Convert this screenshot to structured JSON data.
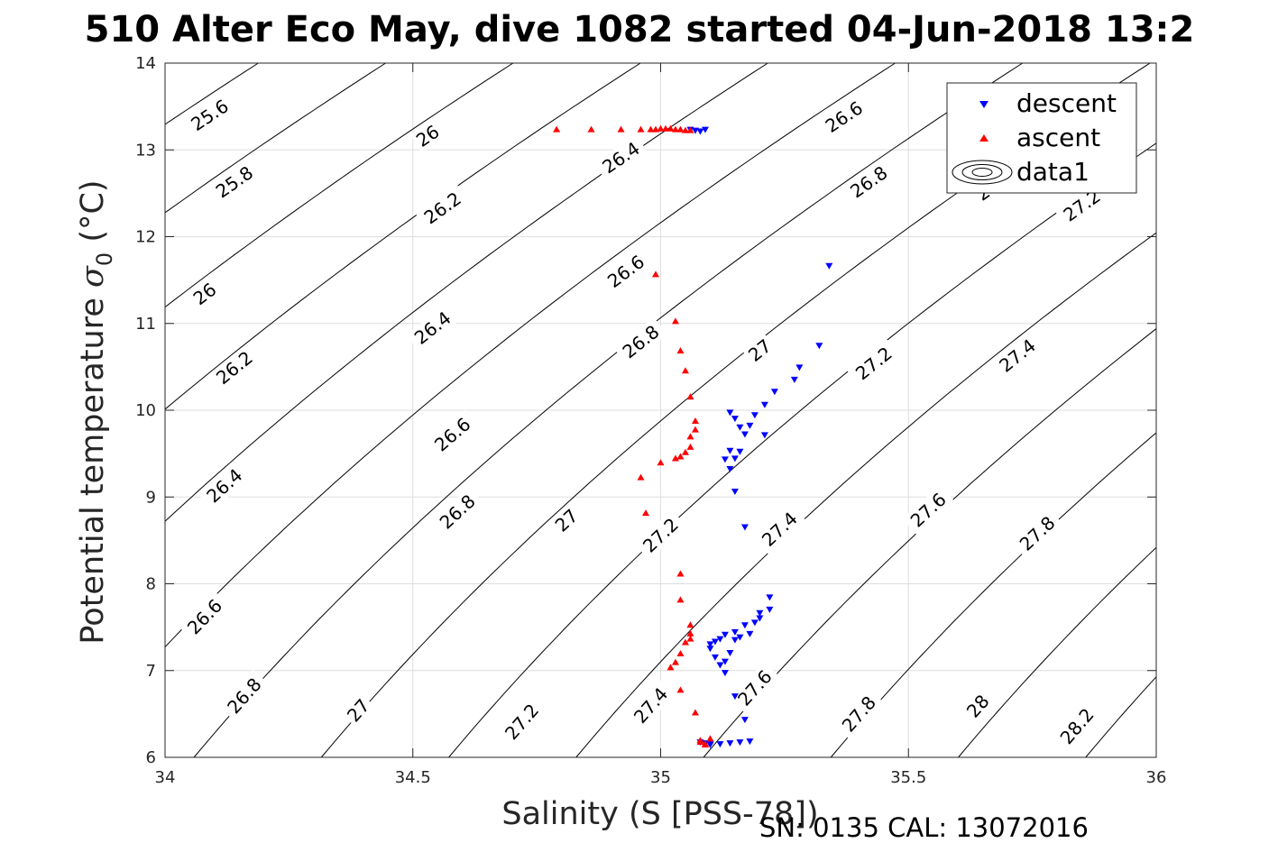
{
  "chart_data": {
    "type": "scatter",
    "title": "510 Alter Eco May, dive 1082 started 04-Jun-2018 13:2",
    "xlabel": "Salinity (S [PSS-78])",
    "ylabel_text": "Potential temperature ",
    "ylabel_symbol": "σ",
    "ylabel_sub": "0",
    "ylabel_unit": " (°C)",
    "footer": "SN: 0135  CAL: 13072016",
    "xlim": [
      34,
      36
    ],
    "ylim": [
      6,
      14
    ],
    "xticks": [
      "34",
      "34.5",
      "35",
      "35.5",
      "36"
    ],
    "yticks": [
      "6",
      "7",
      "8",
      "9",
      "10",
      "11",
      "12",
      "13",
      "14"
    ],
    "grid": true,
    "legend_position": "top-right",
    "legend": [
      "descent",
      "ascent",
      "data1"
    ],
    "colors": {
      "descent": "#0000ff",
      "ascent": "#ff0000",
      "contour": "#000000"
    },
    "contour_levels": [
      25.6,
      25.8,
      26,
      26.2,
      26.4,
      26.6,
      26.8,
      27,
      27.2,
      27.4,
      27.6,
      27.8,
      28,
      28.2
    ],
    "contour_labels": [
      {
        "text": "25.6",
        "s": 34.09,
        "t": 13.4
      },
      {
        "text": "25.8",
        "s": 34.14,
        "t": 12.63
      },
      {
        "text": "26",
        "s": 34.08,
        "t": 11.34
      },
      {
        "text": "26.2",
        "s": 34.14,
        "t": 10.49
      },
      {
        "text": "26.4",
        "s": 34.12,
        "t": 9.13
      },
      {
        "text": "26.6",
        "s": 34.08,
        "t": 7.62
      },
      {
        "text": "26.8",
        "s": 34.16,
        "t": 6.71
      },
      {
        "text": "27",
        "s": 34.39,
        "t": 6.54
      },
      {
        "text": "27.2",
        "s": 34.72,
        "t": 6.41
      },
      {
        "text": "27.4",
        "s": 34.98,
        "t": 6.6
      },
      {
        "text": "27.6",
        "s": 35.19,
        "t": 6.8
      },
      {
        "text": "27.8",
        "s": 35.4,
        "t": 6.5
      },
      {
        "text": "28",
        "s": 35.64,
        "t": 6.59
      },
      {
        "text": "28.2",
        "s": 35.84,
        "t": 6.36
      },
      {
        "text": "26",
        "s": 34.53,
        "t": 13.16
      },
      {
        "text": "26.2",
        "s": 34.56,
        "t": 12.33
      },
      {
        "text": "26.4",
        "s": 34.54,
        "t": 10.95
      },
      {
        "text": "26.6",
        "s": 34.58,
        "t": 9.72
      },
      {
        "text": "26.8",
        "s": 34.59,
        "t": 8.83
      },
      {
        "text": "27",
        "s": 34.81,
        "t": 8.73
      },
      {
        "text": "27.2",
        "s": 35.0,
        "t": 8.56
      },
      {
        "text": "27.4",
        "s": 35.24,
        "t": 8.63
      },
      {
        "text": "27.6",
        "s": 35.54,
        "t": 8.85
      },
      {
        "text": "27.8",
        "s": 35.76,
        "t": 8.58
      },
      {
        "text": "26.4",
        "s": 34.92,
        "t": 12.91
      },
      {
        "text": "26.6",
        "s": 34.93,
        "t": 11.6
      },
      {
        "text": "26.8",
        "s": 34.96,
        "t": 10.79
      },
      {
        "text": "27",
        "s": 35.2,
        "t": 10.69
      },
      {
        "text": "27.2",
        "s": 35.43,
        "t": 10.54
      },
      {
        "text": "27.4",
        "s": 35.72,
        "t": 10.63
      },
      {
        "text": "26.6",
        "s": 35.37,
        "t": 13.38
      },
      {
        "text": "26.8",
        "s": 35.42,
        "t": 12.63
      },
      {
        "text": "27",
        "s": 35.66,
        "t": 12.54
      },
      {
        "text": "27.2",
        "s": 35.85,
        "t": 12.36
      }
    ],
    "series": [
      {
        "name": "descent",
        "marker": "triangle-down",
        "x": [
          35.06,
          35.07,
          35.08,
          35.09,
          35.1,
          35.12,
          35.14,
          35.16,
          35.18,
          35.17,
          35.15,
          35.13,
          35.12,
          35.11,
          35.1,
          35.1,
          35.11,
          35.12,
          35.13,
          35.15,
          35.17,
          35.2,
          35.22,
          35.28,
          35.34,
          35.32,
          35.27,
          35.23,
          35.21,
          35.19,
          35.18,
          35.17,
          35.16,
          35.15,
          35.14,
          35.13,
          35.14,
          35.15,
          35.17,
          35.21,
          35.16,
          35.15,
          35.14,
          35.13,
          35.14,
          35.15,
          35.16,
          35.18,
          35.19,
          35.2,
          35.22,
          35.1,
          35.09,
          35.08
        ],
        "y": [
          13.23,
          13.22,
          13.21,
          13.23,
          6.14,
          6.15,
          6.16,
          6.17,
          6.18,
          6.43,
          6.7,
          6.97,
          7.06,
          7.15,
          7.25,
          7.3,
          7.33,
          7.36,
          7.41,
          7.44,
          7.52,
          7.66,
          7.84,
          10.49,
          11.66,
          10.74,
          10.35,
          10.21,
          10.06,
          9.94,
          9.82,
          9.72,
          9.52,
          9.44,
          9.32,
          9.43,
          9.53,
          9.06,
          8.65,
          9.71,
          9.8,
          9.9,
          9.97,
          7.1,
          7.2,
          7.35,
          7.38,
          7.42,
          7.55,
          7.6,
          7.7,
          6.15,
          6.16,
          6.17
        ]
      },
      {
        "name": "ascent",
        "marker": "triangle-up",
        "x": [
          34.79,
          34.86,
          34.92,
          34.96,
          34.98,
          34.99,
          35.0,
          35.01,
          35.02,
          35.03,
          35.04,
          35.05,
          35.06,
          34.99,
          35.03,
          35.04,
          35.05,
          35.06,
          35.07,
          35.07,
          35.06,
          35.06,
          35.05,
          35.04,
          35.03,
          35.0,
          34.96,
          34.97,
          35.04,
          35.04,
          35.06,
          35.06,
          35.06,
          35.05,
          35.04,
          35.03,
          35.02,
          35.04,
          35.07,
          35.08,
          35.09,
          35.08,
          35.09,
          35.1
        ],
        "y": [
          13.24,
          13.24,
          13.24,
          13.24,
          13.24,
          13.24,
          13.25,
          13.25,
          13.25,
          13.24,
          13.24,
          13.23,
          13.23,
          11.57,
          11.03,
          10.69,
          10.46,
          10.16,
          9.88,
          9.78,
          9.7,
          9.58,
          9.52,
          9.47,
          9.45,
          9.4,
          9.23,
          8.82,
          8.12,
          7.82,
          7.53,
          7.43,
          7.37,
          7.33,
          7.2,
          7.1,
          7.04,
          6.78,
          6.52,
          6.2,
          6.16,
          6.18,
          6.15,
          6.22
        ]
      }
    ]
  }
}
